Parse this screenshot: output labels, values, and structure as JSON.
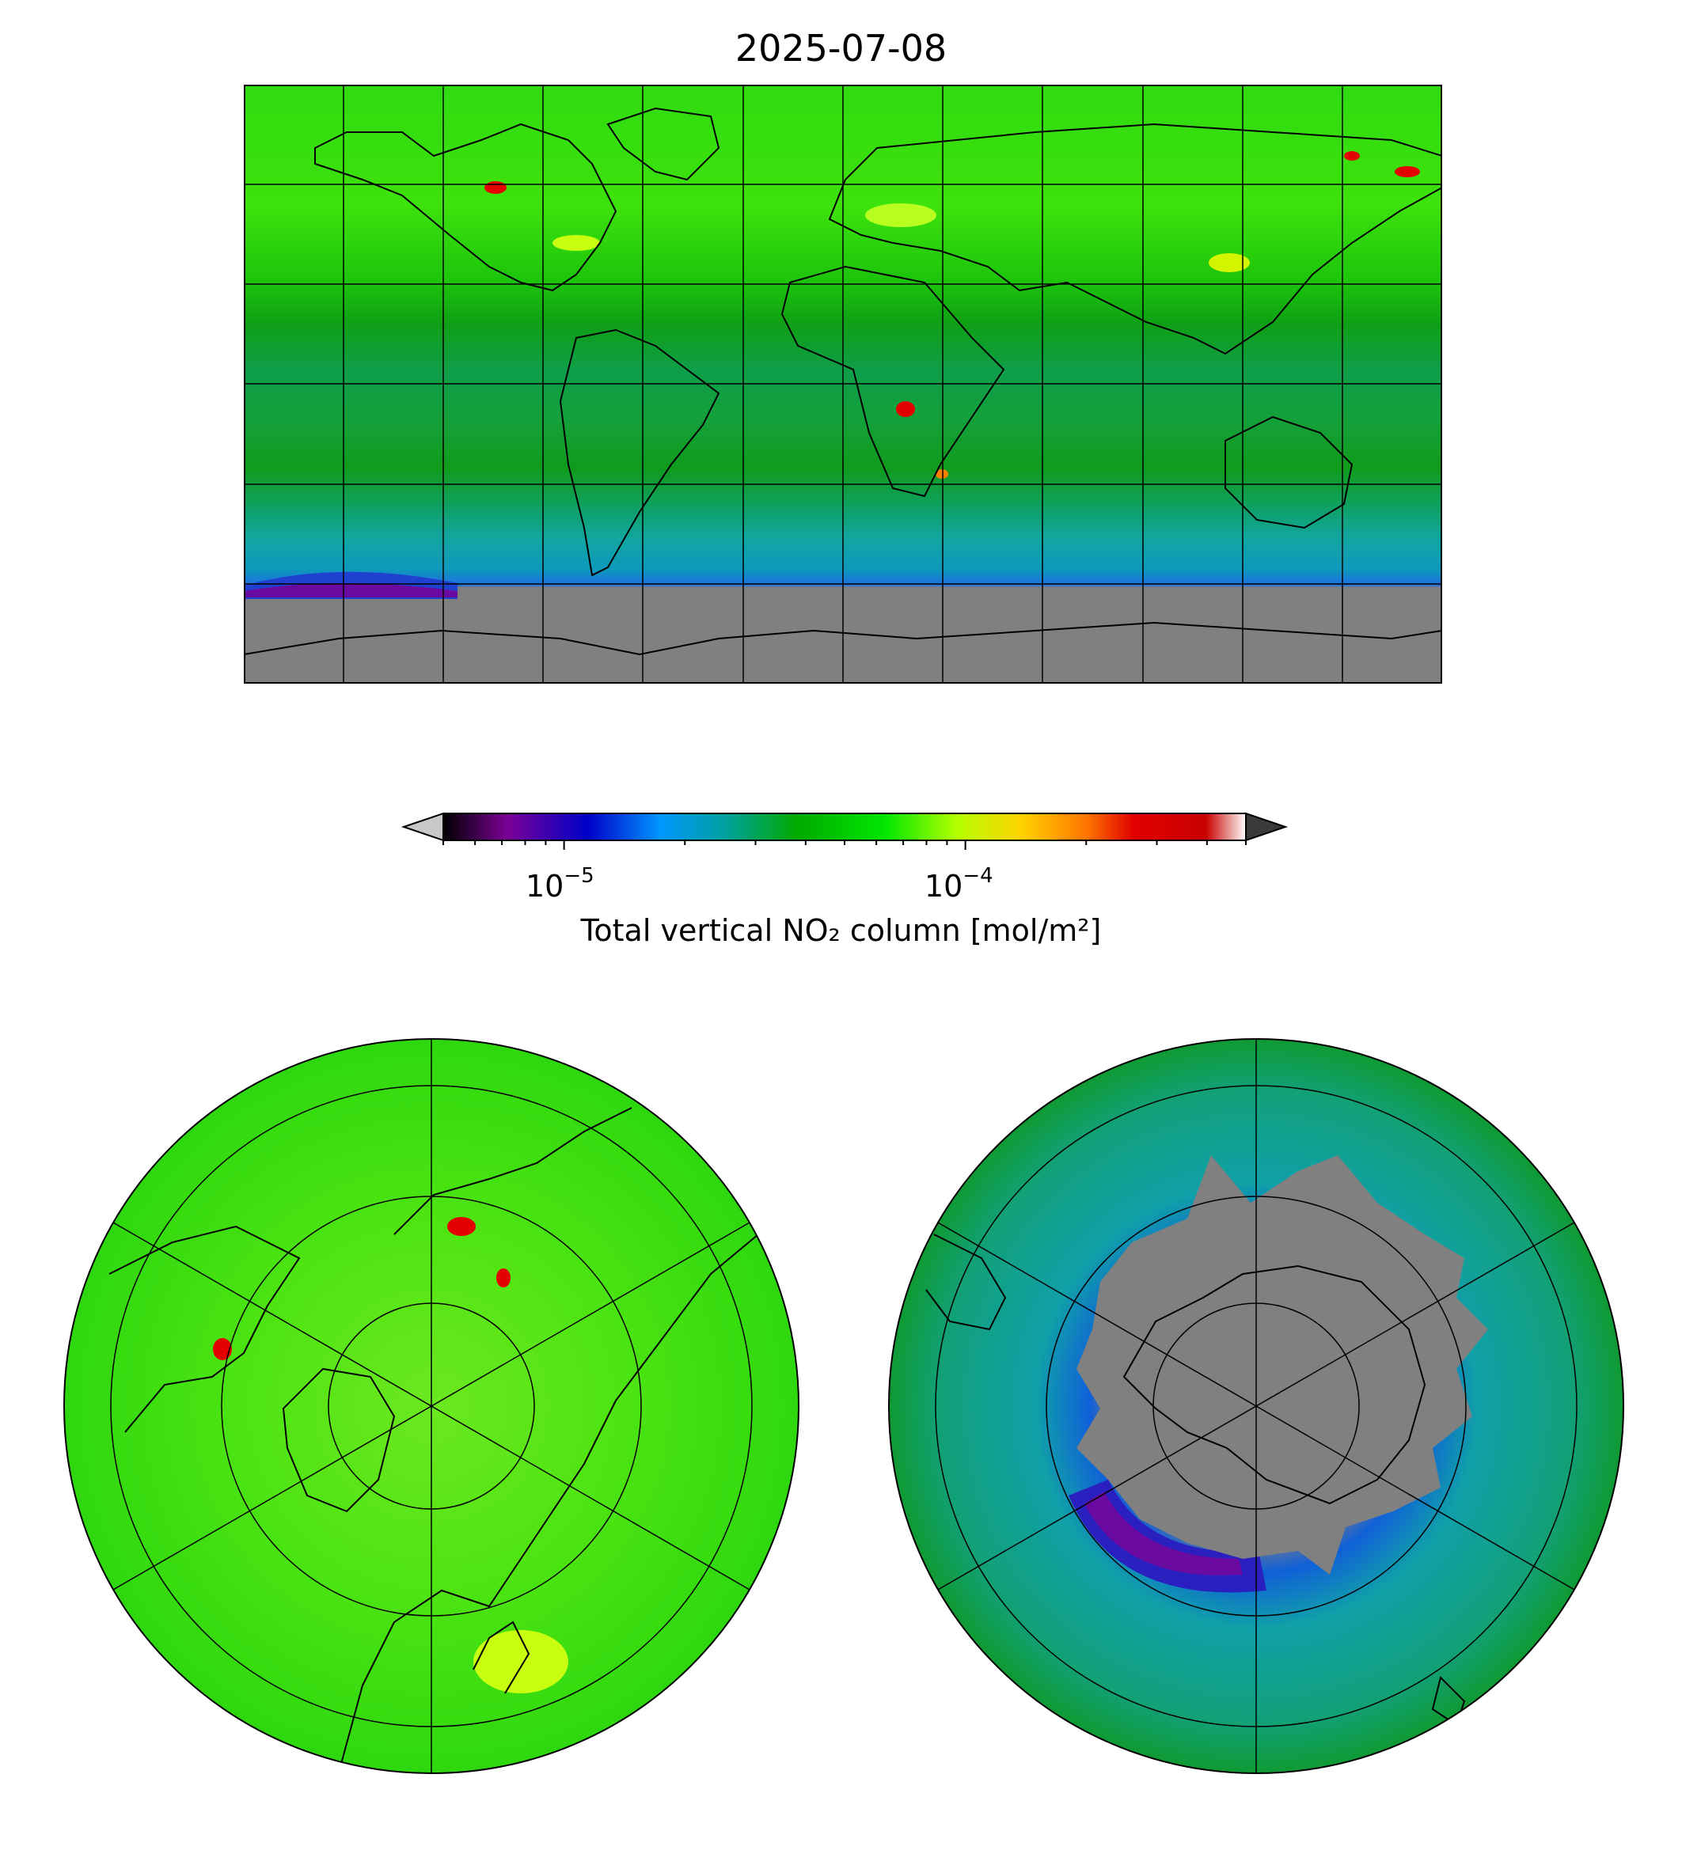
{
  "title": "2025-07-08",
  "colorbar": {
    "label": "Total vertical NO₂ column [mol/m²]",
    "scale": "log",
    "range": [
      5e-06,
      0.0005
    ],
    "ticks": [
      {
        "value": 1e-05,
        "base": "10",
        "exp": "−5"
      },
      {
        "value": 0.0001,
        "base": "10",
        "exp": "−4"
      }
    ],
    "extend": "both",
    "under_color": "#c8c8c8",
    "over_color": "#3a3a3a",
    "colormap": [
      "#000000",
      "#7a0096",
      "#0000c8",
      "#0096ff",
      "#00a0a0",
      "#00aa00",
      "#00e600",
      "#b4ff00",
      "#ffd200",
      "#ff7800",
      "#e10000",
      "#c80000",
      "#ffffff"
    ]
  },
  "maps": [
    {
      "projection": "PlateCarree",
      "extent": "global",
      "graticule": "30° meridians, 30° parallels",
      "no_data_color": "#808080"
    },
    {
      "projection": "NorthPolarStereo",
      "graticule": "60° meridians, 30° parallels"
    },
    {
      "projection": "SouthPolarStereo",
      "graticule": "60° meridians, 30° parallels",
      "no_data_color": "#808080"
    }
  ]
}
